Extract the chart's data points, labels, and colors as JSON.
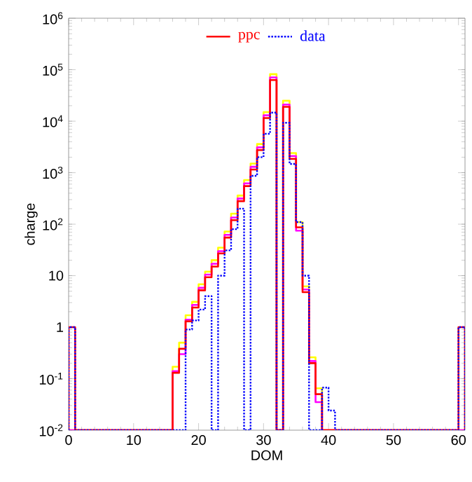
{
  "chart_data": {
    "type": "histogram",
    "xlabel": "DOM",
    "ylabel": "charge",
    "log": "y",
    "legend": "top",
    "grid": false,
    "bins": [
      0,
      1,
      2,
      3,
      4,
      5,
      6,
      7,
      8,
      9,
      10,
      11,
      12,
      13,
      14,
      15,
      16,
      17,
      18,
      19,
      20,
      21,
      22,
      23,
      24,
      25,
      26,
      27,
      28,
      29,
      30,
      31,
      32,
      33,
      34,
      35,
      36,
      37,
      38,
      39,
      40,
      41,
      42,
      43,
      44,
      45,
      46,
      47,
      48,
      49,
      50,
      51,
      52,
      53,
      54,
      55,
      56,
      57,
      58,
      59,
      60,
      61
    ],
    "xlim": [
      0,
      61
    ],
    "xticks": [
      0,
      10,
      20,
      30,
      40,
      50,
      60
    ],
    "ylim": [
      0.01,
      1000000
    ],
    "yticks": [
      {
        "value": 0.01,
        "label": "10$^{-2}$"
      },
      {
        "value": 0.1,
        "label": "10$^{-1}$"
      },
      1,
      10,
      {
        "value": 100,
        "label": "10$^{2}$"
      },
      {
        "value": 1000,
        "label": "10$^{3}$"
      },
      {
        "value": 10000,
        "label": "10$^{4}$"
      },
      {
        "value": 100000,
        "label": "10$^{5}$"
      },
      {
        "value": 1000000,
        "label": "10$^{6}$"
      }
    ],
    "series": [
      {
        "color": "#ffff00",
        "line_style": "solid",
        "values": [
          null,
          null,
          null,
          null,
          null,
          null,
          null,
          null,
          null,
          null,
          null,
          null,
          null,
          null,
          null,
          null,
          0.17,
          0.5,
          1.7,
          3.1,
          6.8,
          12,
          20,
          35,
          72,
          160,
          360,
          720,
          1500,
          3600,
          15000,
          82000,
          null,
          25000,
          2400,
          110,
          6.2,
          0.26,
          0.065,
          null,
          null,
          null,
          null,
          null,
          null,
          null,
          null,
          null,
          null,
          null,
          null,
          null,
          null,
          null,
          null,
          null,
          null,
          null,
          null,
          null,
          null
        ]
      },
      {
        "color": "#ff00ff",
        "line_style": "solid",
        "values": [
          null,
          null,
          null,
          null,
          null,
          null,
          null,
          null,
          null,
          null,
          null,
          null,
          null,
          null,
          null,
          null,
          0.14,
          0.3,
          1.4,
          2.7,
          5.8,
          10.5,
          17,
          30,
          62,
          135,
          315,
          620,
          1300,
          3100,
          13000,
          71000,
          null,
          21000,
          2100,
          75,
          5.4,
          0.22,
          0.035,
          null,
          null,
          null,
          null,
          null,
          null,
          null,
          null,
          null,
          null,
          null,
          null,
          null,
          null,
          null,
          null,
          null,
          null,
          null,
          null,
          null,
          null
        ]
      },
      {
        "name": "ppc",
        "color": "#ff0000",
        "line_style": "solid",
        "values": [
          1,
          null,
          null,
          null,
          null,
          null,
          null,
          null,
          null,
          null,
          null,
          null,
          null,
          null,
          null,
          null,
          0.13,
          0.38,
          1.3,
          2.4,
          5.2,
          9.3,
          15,
          27,
          55,
          120,
          280,
          550,
          1150,
          2750,
          11500,
          63000,
          null,
          19000,
          1860,
          87,
          4.8,
          0.2,
          0.05,
          null,
          null,
          null,
          null,
          null,
          null,
          null,
          null,
          null,
          null,
          null,
          null,
          null,
          null,
          null,
          null,
          null,
          null,
          null,
          null,
          null,
          1
        ]
      },
      {
        "name": "data",
        "color": "#0000ff",
        "line_style": "dotted",
        "values": [
          1,
          null,
          null,
          null,
          null,
          null,
          null,
          null,
          null,
          null,
          null,
          null,
          null,
          null,
          null,
          null,
          null,
          null,
          0.9,
          1.35,
          2.2,
          4,
          null,
          10,
          31,
          80,
          200,
          null,
          870,
          2000,
          5700,
          14700,
          null,
          9300,
          1480,
          110,
          10,
          null,
          null,
          0.067,
          0.024,
          null,
          null,
          null,
          null,
          null,
          null,
          null,
          null,
          null,
          null,
          null,
          null,
          null,
          null,
          null,
          null,
          null,
          null,
          null,
          1
        ]
      }
    ]
  }
}
